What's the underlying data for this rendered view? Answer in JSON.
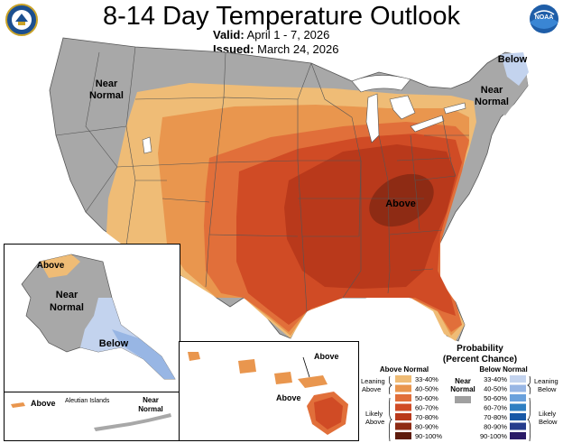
{
  "title": "8-14 Day Temperature Outlook",
  "valid_label": "Valid:",
  "valid_value": "April 1 - 7, 2026",
  "issued_label": "Issued:",
  "issued_value": "March 24, 2026",
  "logos": {
    "left": "doc-seal",
    "right_text": "NOAA"
  },
  "map_labels": {
    "near_normal_west": [
      "Near",
      "Normal"
    ],
    "below_ne": "Below",
    "near_normal_ne": [
      "Near",
      "Normal"
    ],
    "above_se": "Above",
    "ak_above": "Above",
    "ak_near_normal": [
      "Near",
      "Normal"
    ],
    "ak_below": "Below",
    "aleutian_above": "Above",
    "aleutian_islands": "Aleutian Islands",
    "aleutian_near_normal": [
      "Near",
      "Normal"
    ],
    "hi_above_1": "Above",
    "hi_above_2": "Above"
  },
  "legend": {
    "title": "Probability",
    "subtitle": "(Percent Chance)",
    "above_header": "Above Normal",
    "below_header": "Below Normal",
    "near_normal": [
      "Near",
      "Normal"
    ],
    "leaning_above": [
      "Leaning",
      "Above"
    ],
    "likely_above": [
      "Likely",
      "Above"
    ],
    "leaning_below": [
      "Leaning",
      "Below"
    ],
    "likely_below": [
      "Likely",
      "Below"
    ],
    "above_bins": [
      {
        "label": "33-40%",
        "color": "#efbc76"
      },
      {
        "label": "40-50%",
        "color": "#e9964e"
      },
      {
        "label": "50-60%",
        "color": "#e16f3a"
      },
      {
        "label": "60-70%",
        "color": "#d04b25"
      },
      {
        "label": "70-80%",
        "color": "#b9391b"
      },
      {
        "label": "80-90%",
        "color": "#8e2b14"
      },
      {
        "label": "90-100%",
        "color": "#5e1b0c"
      }
    ],
    "below_bins": [
      {
        "label": "33-40%",
        "color": "#c3d3ee"
      },
      {
        "label": "40-50%",
        "color": "#98b6e4"
      },
      {
        "label": "50-60%",
        "color": "#6aa1dc"
      },
      {
        "label": "60-70%",
        "color": "#2f7fc2"
      },
      {
        "label": "70-80%",
        "color": "#1858a6"
      },
      {
        "label": "80-90%",
        "color": "#263c8c"
      },
      {
        "label": "90-100%",
        "color": "#2a1a66"
      }
    ],
    "near_color": "#a0a0a0"
  }
}
